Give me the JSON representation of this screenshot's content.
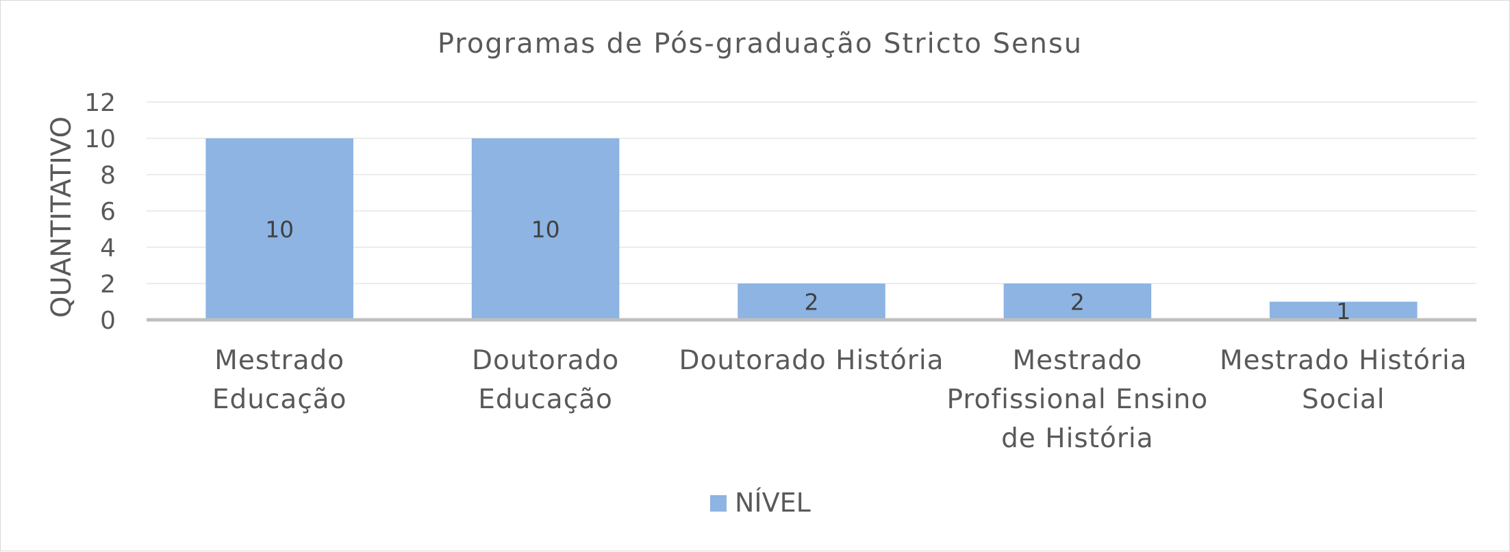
{
  "chart_data": {
    "type": "bar",
    "title": "Programas de Pós-graduação Stricto Sensu",
    "xlabel": "",
    "ylabel": "QUANTITATIVO",
    "categories": [
      [
        "Mestrado",
        "Educação"
      ],
      [
        "Doutorado",
        "Educação"
      ],
      [
        "Doutorado História"
      ],
      [
        "Mestrado",
        "Profissional Ensino",
        "de História"
      ],
      [
        "Mestrado História",
        "Social"
      ]
    ],
    "series": [
      {
        "name": "NÍVEL",
        "values": [
          10,
          10,
          2,
          2,
          1
        ],
        "color": "#8db4e2"
      }
    ],
    "ylim": [
      0,
      12
    ],
    "yticks": [
      0,
      2,
      4,
      6,
      8,
      10,
      12
    ],
    "data_labels": true,
    "grid": true,
    "legend": "bottom"
  }
}
